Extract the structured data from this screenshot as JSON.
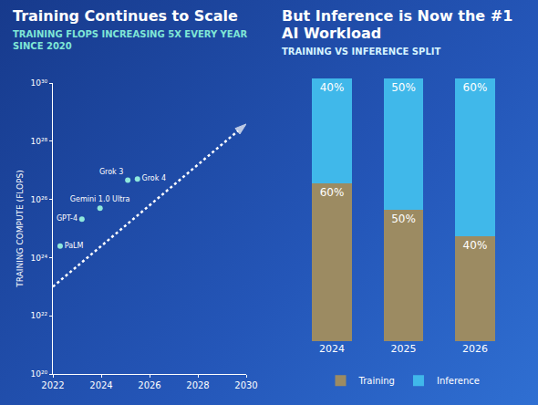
{
  "chart_data": [
    {
      "type": "scatter",
      "title": "Training Continues to Scale",
      "subtitle": "TRAINING FLOPS INCREASING 5X EVERY YEAR SINCE 2020",
      "y_label": "TRAINING COMPUTE (FLOPS)",
      "log": "y",
      "grid": false,
      "xlim": [
        2022,
        2030
      ],
      "xticks": [
        2022,
        2024,
        2026,
        2028,
        2030
      ],
      "ylim": [
        1e+20,
        1e+30
      ],
      "yticks": [
        {
          "value": 1e+20,
          "label": "10²⁰"
        },
        {
          "value": 1e+22,
          "label": "10²²"
        },
        {
          "value": 1e+24,
          "label": "10²⁴"
        },
        {
          "value": 1e+26,
          "label": "10²⁶"
        },
        {
          "value": 1e+28,
          "label": "10²⁸"
        },
        {
          "value": 1e+30,
          "label": "10³⁰"
        }
      ],
      "series": [
        {
          "type": "scatter",
          "marker": "circle",
          "color": "#8fe8dc",
          "x": [
            2022.3,
            2023.2,
            2023.95,
            2025.1,
            2025.5
          ],
          "values": [
            2.5e+24,
            2.1e+25,
            5e+25,
            4.6e+26,
            5e+26
          ],
          "labels": [
            "PaLM",
            "GPT-4",
            "Gemini 1.0 Ultra",
            "Grok 3",
            "Grok 4"
          ]
        },
        {
          "type": "line",
          "line_style": "dot",
          "color": "#ffffff",
          "x": [
            2022,
            2030
          ],
          "values": [
            1e+23,
            3.9e+28
          ]
        }
      ]
    },
    {
      "type": "bar",
      "title": "But Inference is Now the #1 AI Workload",
      "subtitle": "TRAINING VS INFERENCE SPLIT",
      "stacked": true,
      "data_labels": true,
      "tick_labels": "x",
      "legend": "bottom",
      "categories": [
        "2024",
        "2025",
        "2026"
      ],
      "ylim": [
        0,
        100
      ],
      "series": [
        {
          "name": "Training",
          "color": "#9c8b62",
          "values": [
            60,
            50,
            40
          ],
          "value_labels": [
            "60%",
            "50%",
            "40%"
          ]
        },
        {
          "name": "Inference",
          "color": "#40b8ea",
          "values": [
            40,
            50,
            60
          ],
          "value_labels": [
            "40%",
            "50%",
            "60%"
          ]
        }
      ]
    }
  ]
}
